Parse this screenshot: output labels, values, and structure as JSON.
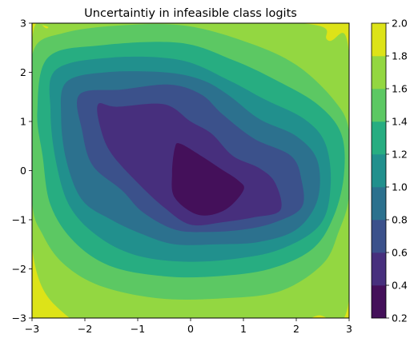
{
  "chart_data": {
    "type": "heatmap",
    "subtype": "filled-contour",
    "title": "Uncertaintiy in infeasible class logits",
    "xlabel": "",
    "ylabel": "",
    "xlim": [
      -3,
      3
    ],
    "ylim": [
      -3,
      3
    ],
    "x_ticks": [
      -3,
      -2,
      -1,
      0,
      1,
      2,
      3
    ],
    "y_ticks": [
      -3,
      -2,
      -1,
      0,
      1,
      2,
      3
    ],
    "x_tick_labels": [
      "−3",
      "−2",
      "−1",
      "0",
      "1",
      "2",
      "3"
    ],
    "y_tick_labels": [
      "−3",
      "−2",
      "−1",
      "0",
      "1",
      "2",
      "3"
    ],
    "grid": false,
    "colorbar": {
      "position": "right",
      "levels": [
        0.2,
        0.4,
        0.6,
        0.8,
        1.0,
        1.2,
        1.4,
        1.6,
        1.8,
        2.0
      ],
      "tick_labels": [
        "0.2",
        "0.4",
        "0.6",
        "0.8",
        "1.0",
        "1.2",
        "1.4",
        "1.6",
        "1.8",
        "2.0"
      ],
      "colors": [
        "#44105a",
        "#472f7d",
        "#3b518b",
        "#2c718e",
        "#21908d",
        "#27ad81",
        "#5cc863",
        "#93d741",
        "#dde318"
      ]
    },
    "minimum_region": {
      "value_band": [
        0.2,
        0.4
      ],
      "approx_center": [
        0.4,
        -0.3
      ]
    },
    "contour_boundaries": [
      {
        "level": 0.4,
        "points": [
          [
            -0.2,
            0.55
          ],
          [
            0.2,
            0.3
          ],
          [
            0.55,
            0.05
          ],
          [
            0.9,
            -0.2
          ],
          [
            1.0,
            -0.4
          ],
          [
            0.65,
            -0.8
          ],
          [
            0.15,
            -0.9
          ],
          [
            -0.3,
            -0.55
          ],
          [
            -0.35,
            -0.05
          ],
          [
            -0.3,
            0.45
          ]
        ]
      },
      {
        "level": 0.6,
        "points": [
          [
            -1.75,
            1.35
          ],
          [
            -1.4,
            1.3
          ],
          [
            -0.5,
            1.35
          ],
          [
            0.0,
            1.0
          ],
          [
            0.4,
            0.75
          ],
          [
            0.8,
            0.3
          ],
          [
            1.3,
            0.05
          ],
          [
            1.6,
            -0.25
          ],
          [
            1.7,
            -0.8
          ],
          [
            1.2,
            -0.95
          ],
          [
            0.6,
            -1.05
          ],
          [
            0.0,
            -1.1
          ],
          [
            -0.5,
            -0.75
          ],
          [
            -1.0,
            -0.25
          ],
          [
            -1.5,
            0.35
          ],
          [
            -1.7,
            0.85
          ]
        ]
      },
      {
        "level": 0.8,
        "points": [
          [
            -2.1,
            1.55
          ],
          [
            -1.3,
            1.65
          ],
          [
            -0.4,
            1.75
          ],
          [
            0.2,
            1.55
          ],
          [
            0.6,
            1.15
          ],
          [
            1.2,
            0.65
          ],
          [
            1.9,
            0.3
          ],
          [
            2.1,
            -0.2
          ],
          [
            2.1,
            -0.75
          ],
          [
            1.6,
            -1.05
          ],
          [
            1.0,
            -1.2
          ],
          [
            0.3,
            -1.25
          ],
          [
            -0.3,
            -1.2
          ],
          [
            -0.9,
            -0.85
          ],
          [
            -1.3,
            -0.4
          ],
          [
            -1.85,
            0.1
          ],
          [
            -2.05,
            0.8
          ]
        ]
      },
      {
        "level": 1.0,
        "points": [
          [
            -2.35,
            1.8
          ],
          [
            -1.6,
            2.0
          ],
          [
            -0.5,
            2.0
          ],
          [
            0.2,
            1.85
          ],
          [
            0.7,
            1.55
          ],
          [
            1.3,
            1.05
          ],
          [
            2.0,
            0.7
          ],
          [
            2.4,
            0.2
          ],
          [
            2.4,
            -0.6
          ],
          [
            2.0,
            -1.2
          ],
          [
            1.3,
            -1.45
          ],
          [
            0.5,
            -1.5
          ],
          [
            -0.3,
            -1.5
          ],
          [
            -0.9,
            -1.3
          ],
          [
            -1.5,
            -1.0
          ],
          [
            -2.05,
            -0.6
          ],
          [
            -2.35,
            0.2
          ],
          [
            -2.45,
            1.1
          ]
        ]
      },
      {
        "level": 1.2,
        "points": [
          [
            -2.55,
            2.05
          ],
          [
            -1.5,
            2.3
          ],
          [
            -0.2,
            2.25
          ],
          [
            0.7,
            1.85
          ],
          [
            1.4,
            1.45
          ],
          [
            2.15,
            1.05
          ],
          [
            2.55,
            0.55
          ],
          [
            2.65,
            -0.3
          ],
          [
            2.45,
            -1.1
          ],
          [
            1.7,
            -1.6
          ],
          [
            0.8,
            -1.8
          ],
          [
            -0.2,
            -1.85
          ],
          [
            -1.1,
            -1.7
          ],
          [
            -1.8,
            -1.3
          ],
          [
            -2.3,
            -0.7
          ],
          [
            -2.55,
            0.2
          ],
          [
            -2.65,
            1.2
          ]
        ]
      },
      {
        "level": 1.4,
        "points": [
          [
            -2.7,
            2.3
          ],
          [
            -1.7,
            2.55
          ],
          [
            -0.2,
            2.6
          ],
          [
            0.8,
            2.25
          ],
          [
            1.6,
            1.85
          ],
          [
            2.4,
            1.35
          ],
          [
            2.85,
            0.75
          ],
          [
            2.9,
            -0.1
          ],
          [
            2.7,
            -0.95
          ],
          [
            2.3,
            -1.6
          ],
          [
            1.5,
            -2.0
          ],
          [
            0.5,
            -2.15
          ],
          [
            -0.5,
            -2.15
          ],
          [
            -1.5,
            -1.95
          ],
          [
            -2.2,
            -1.45
          ],
          [
            -2.65,
            -0.7
          ],
          [
            -2.8,
            0.3
          ],
          [
            -2.9,
            1.2
          ]
        ]
      },
      {
        "level": 1.6,
        "points": [
          [
            -2.95,
            2.5
          ],
          [
            -2.4,
            2.8
          ],
          [
            -1.4,
            2.95
          ],
          [
            -0.1,
            2.95
          ],
          [
            1.1,
            2.6
          ],
          [
            2.0,
            2.15
          ],
          [
            2.7,
            1.45
          ],
          [
            3.0,
            0.8
          ],
          [
            3.0,
            -0.5
          ],
          [
            2.8,
            -1.25
          ],
          [
            2.5,
            -1.9
          ],
          [
            1.7,
            -2.45
          ],
          [
            0.6,
            -2.6
          ],
          [
            -0.6,
            -2.6
          ],
          [
            -1.7,
            -2.35
          ],
          [
            -2.4,
            -1.9
          ],
          [
            -2.8,
            -1.3
          ],
          [
            -3.0,
            -0.6
          ],
          [
            -3.0,
            1.5
          ]
        ]
      },
      {
        "level": 1.8,
        "points": [
          [
            -3.0,
            2.6
          ],
          [
            -2.7,
            2.9
          ],
          [
            -2.45,
            3.0
          ],
          [
            2.05,
            3.0
          ],
          [
            2.6,
            2.65
          ],
          [
            3.0,
            2.35
          ],
          [
            3.0,
            -2.6
          ],
          [
            2.4,
            -2.95
          ],
          [
            1.8,
            -3.0
          ],
          [
            -1.5,
            -3.0
          ],
          [
            -2.4,
            -2.9
          ],
          [
            -3.0,
            -1.55
          ]
        ]
      }
    ]
  }
}
